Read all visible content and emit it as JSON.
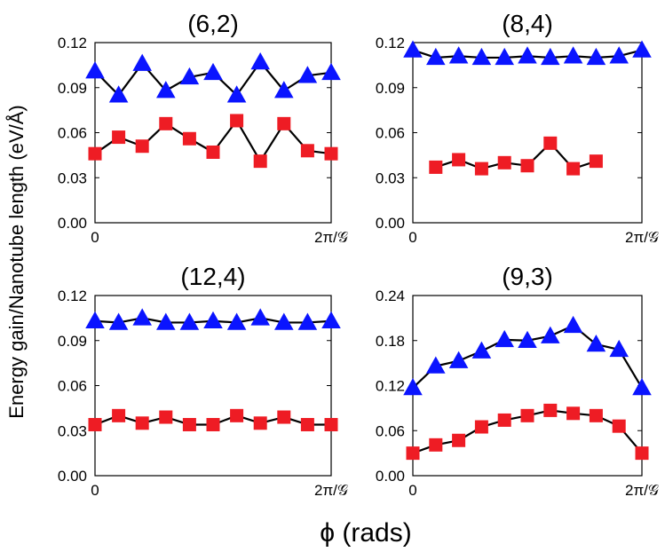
{
  "figure": {
    "ylabel": "Energy gain/Nanotube length (eV/Å)",
    "xlabel": "ϕ (rads)",
    "colors": {
      "blue": "#0a14ff",
      "red": "#ee1c24",
      "line": "#000000"
    }
  },
  "chart_data": [
    {
      "type": "line",
      "title": "(6,2)",
      "xlabel": "",
      "ylabel": "",
      "xlim": [
        0,
        1
      ],
      "ylim": [
        0,
        0.12
      ],
      "yticks": [
        "0.00",
        "0.03",
        "0.06",
        "0.09",
        "0.12"
      ],
      "yticks_values": [
        0,
        0.03,
        0.06,
        0.09,
        0.12
      ],
      "xticks": [
        "0",
        "2π/𝒢"
      ],
      "xticks_values": [
        0,
        1
      ],
      "series": [
        {
          "name": "triangles",
          "color": "#0a14ff",
          "marker": "triangle",
          "x": [
            0,
            0.1,
            0.2,
            0.3,
            0.4,
            0.5,
            0.6,
            0.7,
            0.8,
            0.9,
            1.0
          ],
          "values": [
            0.101,
            0.085,
            0.106,
            0.088,
            0.097,
            0.1,
            0.085,
            0.107,
            0.088,
            0.098,
            0.1
          ]
        },
        {
          "name": "squares",
          "color": "#ee1c24",
          "marker": "square",
          "x": [
            0,
            0.1,
            0.2,
            0.3,
            0.4,
            0.5,
            0.6,
            0.7,
            0.8,
            0.9,
            1.0
          ],
          "values": [
            0.046,
            0.057,
            0.051,
            0.066,
            0.056,
            0.047,
            0.068,
            0.041,
            0.066,
            0.048,
            0.046
          ]
        }
      ]
    },
    {
      "type": "line",
      "title": "(8,4)",
      "xlabel": "",
      "ylabel": "",
      "xlim": [
        0,
        1
      ],
      "ylim": [
        0,
        0.12
      ],
      "yticks": [
        "0.00",
        "0.03",
        "0.06",
        "0.09",
        "0.12"
      ],
      "yticks_values": [
        0,
        0.03,
        0.06,
        0.09,
        0.12
      ],
      "xticks": [
        "0",
        "2π/𝒢"
      ],
      "xticks_values": [
        0,
        1
      ],
      "series": [
        {
          "name": "triangles",
          "color": "#0a14ff",
          "marker": "triangle",
          "x": [
            0,
            0.1,
            0.2,
            0.3,
            0.4,
            0.5,
            0.6,
            0.7,
            0.8,
            0.9,
            1.0
          ],
          "values": [
            0.115,
            0.11,
            0.111,
            0.11,
            0.11,
            0.111,
            0.11,
            0.111,
            0.11,
            0.111,
            0.115
          ]
        },
        {
          "name": "squares",
          "color": "#ee1c24",
          "marker": "square",
          "x": [
            0.1,
            0.2,
            0.3,
            0.4,
            0.5,
            0.6,
            0.7,
            0.8
          ],
          "values": [
            0.037,
            0.042,
            0.036,
            0.04,
            0.038,
            0.053,
            0.036,
            0.041
          ]
        }
      ]
    },
    {
      "type": "line",
      "title": "(12,4)",
      "xlabel": "",
      "ylabel": "",
      "xlim": [
        0,
        1
      ],
      "ylim": [
        0,
        0.12
      ],
      "yticks": [
        "0.00",
        "0.03",
        "0.06",
        "0.09",
        "0.12"
      ],
      "yticks_values": [
        0,
        0.03,
        0.06,
        0.09,
        0.12
      ],
      "xticks": [
        "0",
        "2π/𝒢"
      ],
      "xticks_values": [
        0,
        1
      ],
      "series": [
        {
          "name": "triangles",
          "color": "#0a14ff",
          "marker": "triangle",
          "x": [
            0,
            0.1,
            0.2,
            0.3,
            0.4,
            0.5,
            0.6,
            0.7,
            0.8,
            0.9,
            1.0
          ],
          "values": [
            0.103,
            0.102,
            0.105,
            0.102,
            0.102,
            0.103,
            0.102,
            0.105,
            0.102,
            0.102,
            0.103
          ]
        },
        {
          "name": "squares",
          "color": "#ee1c24",
          "marker": "square",
          "x": [
            0,
            0.1,
            0.2,
            0.3,
            0.4,
            0.5,
            0.6,
            0.7,
            0.8,
            0.9,
            1.0
          ],
          "values": [
            0.034,
            0.04,
            0.035,
            0.039,
            0.034,
            0.034,
            0.04,
            0.035,
            0.039,
            0.034,
            0.034
          ]
        }
      ]
    },
    {
      "type": "line",
      "title": "(9,3)",
      "xlabel": "",
      "ylabel": "",
      "xlim": [
        0,
        1
      ],
      "ylim": [
        0,
        0.24
      ],
      "yticks": [
        "0.00",
        "0.06",
        "0.12",
        "0.18",
        "0.24"
      ],
      "yticks_values": [
        0,
        0.06,
        0.12,
        0.18,
        0.24
      ],
      "xticks": [
        "0",
        "2π/𝒢"
      ],
      "xticks_values": [
        0,
        1
      ],
      "series": [
        {
          "name": "triangles",
          "color": "#0a14ff",
          "marker": "triangle",
          "x": [
            0,
            0.1,
            0.2,
            0.3,
            0.4,
            0.5,
            0.6,
            0.7,
            0.8,
            0.9,
            1.0
          ],
          "values": [
            0.117,
            0.146,
            0.153,
            0.166,
            0.181,
            0.18,
            0.186,
            0.2,
            0.175,
            0.168,
            0.117
          ]
        },
        {
          "name": "squares",
          "color": "#ee1c24",
          "marker": "square",
          "x": [
            0,
            0.1,
            0.2,
            0.3,
            0.4,
            0.5,
            0.6,
            0.7,
            0.8,
            0.9,
            1.0
          ],
          "values": [
            0.03,
            0.041,
            0.047,
            0.065,
            0.074,
            0.08,
            0.087,
            0.083,
            0.08,
            0.066,
            0.03
          ]
        }
      ]
    }
  ]
}
